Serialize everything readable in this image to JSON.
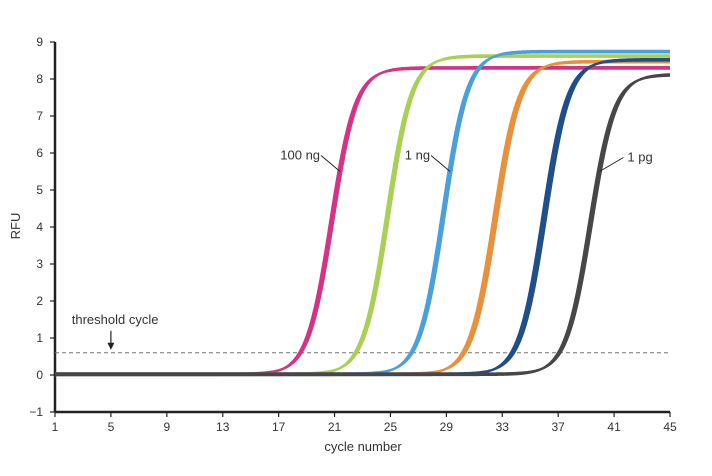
{
  "chart_data": {
    "type": "line",
    "title": "",
    "xlabel": "cycle number",
    "ylabel": "RFU",
    "xlim": [
      1,
      45
    ],
    "ylim": [
      -1,
      9
    ],
    "xticks": [
      1,
      5,
      9,
      13,
      17,
      21,
      25,
      29,
      33,
      37,
      41,
      45
    ],
    "yticks": [
      -1,
      0,
      1,
      2,
      3,
      4,
      5,
      6,
      7,
      8,
      9
    ],
    "grid": false,
    "legend": "none",
    "threshold": {
      "y": 0.6,
      "label": "threshold cycle"
    },
    "series_model": "sigmoid",
    "series": [
      {
        "color": "#d63384",
        "midpoint": 20.8,
        "slope": 1.15,
        "plateau": 8.28,
        "label": "100 ng",
        "replicate_offsets": [
          -0.12,
          0,
          0.12
        ]
      },
      {
        "color": "#a9cf54",
        "midpoint": 24.8,
        "slope": 1.15,
        "plateau": 8.6,
        "replicate_offsets": [
          -0.12,
          0,
          0.12
        ]
      },
      {
        "color": "#4aa0dc",
        "midpoint": 28.8,
        "slope": 1.15,
        "plateau": 8.72,
        "label": "1 ng",
        "replicate_offsets": [
          -0.12,
          0,
          0.12
        ]
      },
      {
        "color": "#e8903a",
        "midpoint": 32.5,
        "slope": 1.15,
        "plateau": 8.45,
        "replicate_offsets": [
          -0.15,
          0,
          0.15
        ]
      },
      {
        "color": "#1f4f8a",
        "midpoint": 36.0,
        "slope": 1.15,
        "plateau": 8.5,
        "replicate_offsets": [
          -0.15,
          0,
          0.15
        ]
      },
      {
        "color": "#474747",
        "midpoint": 39.3,
        "slope": 1.15,
        "plateau": 8.1,
        "label": "1 pg",
        "replicate_offsets": [
          -0.12,
          0,
          0.12
        ]
      }
    ]
  }
}
